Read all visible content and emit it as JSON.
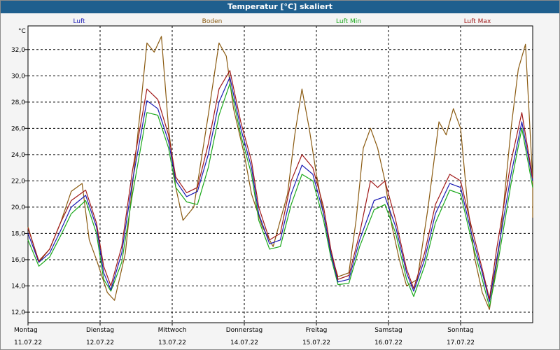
{
  "window": {
    "title": "Temperatur [°C] skaliert"
  },
  "chart_data": {
    "type": "line",
    "title": "Temperatur [°C] skaliert",
    "ylabel": "°C",
    "ylim": [
      11.2,
      33.8
    ],
    "yticks": [
      12.0,
      14.0,
      16.0,
      18.0,
      20.0,
      22.0,
      24.0,
      26.0,
      28.0,
      30.0,
      32.0
    ],
    "ytick_labels": [
      "12,0",
      "14,0",
      "16,0",
      "18,0",
      "20,0",
      "22,0",
      "24,0",
      "26,0",
      "28,0",
      "30,0",
      "32,0"
    ],
    "xlim": [
      0,
      7
    ],
    "x_unit": "days from Montag 11.07.22 00:00",
    "grid": true,
    "legend_position": "top",
    "days": [
      {
        "weekday": "Montag",
        "date": "11.07.22"
      },
      {
        "weekday": "Dienstag",
        "date": "12.07.22"
      },
      {
        "weekday": "Mittwoch",
        "date": "13.07.22"
      },
      {
        "weekday": "Donnerstag",
        "date": "14.07.22"
      },
      {
        "weekday": "Freitag",
        "date": "15.07.22"
      },
      {
        "weekday": "Samstag",
        "date": "16.07.22"
      },
      {
        "weekday": "Sonntag",
        "date": "17.07.22"
      }
    ],
    "series": [
      {
        "name": "Luft",
        "color": "#1a1ab4",
        "points": [
          [
            0,
            18.0
          ],
          [
            0.15,
            15.8
          ],
          [
            0.3,
            16.5
          ],
          [
            0.45,
            18.2
          ],
          [
            0.6,
            20.0
          ],
          [
            0.8,
            20.9
          ],
          [
            0.95,
            18.5
          ],
          [
            1.05,
            15.0
          ],
          [
            1.15,
            13.7
          ],
          [
            1.3,
            16.5
          ],
          [
            1.45,
            22.0
          ],
          [
            1.65,
            28.1
          ],
          [
            1.8,
            27.5
          ],
          [
            1.95,
            25.0
          ],
          [
            2.05,
            22.0
          ],
          [
            2.2,
            20.8
          ],
          [
            2.35,
            21.2
          ],
          [
            2.5,
            24.0
          ],
          [
            2.65,
            28.0
          ],
          [
            2.8,
            29.9
          ],
          [
            2.95,
            26.0
          ],
          [
            3.1,
            23.0
          ],
          [
            3.2,
            19.5
          ],
          [
            3.35,
            17.2
          ],
          [
            3.5,
            17.5
          ],
          [
            3.65,
            21.0
          ],
          [
            3.8,
            23.2
          ],
          [
            3.95,
            22.5
          ],
          [
            4.1,
            19.5
          ],
          [
            4.2,
            16.5
          ],
          [
            4.3,
            14.3
          ],
          [
            4.45,
            14.5
          ],
          [
            4.6,
            17.5
          ],
          [
            4.8,
            20.5
          ],
          [
            4.95,
            20.8
          ],
          [
            5.1,
            18.5
          ],
          [
            5.25,
            15.0
          ],
          [
            5.35,
            13.6
          ],
          [
            5.5,
            16.0
          ],
          [
            5.65,
            19.5
          ],
          [
            5.85,
            21.8
          ],
          [
            6.0,
            21.5
          ],
          [
            6.15,
            18.0
          ],
          [
            6.3,
            15.0
          ],
          [
            6.4,
            12.8
          ],
          [
            6.5,
            16.0
          ],
          [
            6.7,
            22.5
          ],
          [
            6.85,
            26.5
          ],
          [
            7.0,
            22.0
          ]
        ]
      },
      {
        "name": "Boden",
        "color": "#8a5a10",
        "points": [
          [
            0,
            18.5
          ],
          [
            0.15,
            15.8
          ],
          [
            0.3,
            16.8
          ],
          [
            0.45,
            18.8
          ],
          [
            0.6,
            21.2
          ],
          [
            0.75,
            21.8
          ],
          [
            0.85,
            17.5
          ],
          [
            0.95,
            16.0
          ],
          [
            1.1,
            13.5
          ],
          [
            1.2,
            12.9
          ],
          [
            1.35,
            16.5
          ],
          [
            1.55,
            27.0
          ],
          [
            1.65,
            32.5
          ],
          [
            1.75,
            31.8
          ],
          [
            1.85,
            33.0
          ],
          [
            1.95,
            26.0
          ],
          [
            2.05,
            21.5
          ],
          [
            2.15,
            19.0
          ],
          [
            2.3,
            20.0
          ],
          [
            2.5,
            27.0
          ],
          [
            2.65,
            32.5
          ],
          [
            2.75,
            31.5
          ],
          [
            2.85,
            27.5
          ],
          [
            3.0,
            24.0
          ],
          [
            3.1,
            21.0
          ],
          [
            3.25,
            18.5
          ],
          [
            3.4,
            17.0
          ],
          [
            3.6,
            21.0
          ],
          [
            3.7,
            25.5
          ],
          [
            3.8,
            29.0
          ],
          [
            3.9,
            26.0
          ],
          [
            4.0,
            22.5
          ],
          [
            4.1,
            19.5
          ],
          [
            4.2,
            16.5
          ],
          [
            4.3,
            14.7
          ],
          [
            4.45,
            15.0
          ],
          [
            4.55,
            19.0
          ],
          [
            4.65,
            24.5
          ],
          [
            4.75,
            26.0
          ],
          [
            4.85,
            24.5
          ],
          [
            4.95,
            22.0
          ],
          [
            5.05,
            18.5
          ],
          [
            5.15,
            16.0
          ],
          [
            5.25,
            14.0
          ],
          [
            5.4,
            14.5
          ],
          [
            5.55,
            20.0
          ],
          [
            5.7,
            26.5
          ],
          [
            5.8,
            25.5
          ],
          [
            5.9,
            27.5
          ],
          [
            6.0,
            26.0
          ],
          [
            6.1,
            20.0
          ],
          [
            6.2,
            16.0
          ],
          [
            6.3,
            13.5
          ],
          [
            6.4,
            12.2
          ],
          [
            6.55,
            17.5
          ],
          [
            6.7,
            26.0
          ],
          [
            6.8,
            30.5
          ],
          [
            6.9,
            32.4
          ],
          [
            7.0,
            22.0
          ],
          [
            7.0,
            19.2
          ]
        ]
      },
      {
        "name": "Luft Min",
        "color": "#1aa81a",
        "points": [
          [
            0,
            17.5
          ],
          [
            0.15,
            15.5
          ],
          [
            0.3,
            16.2
          ],
          [
            0.45,
            17.8
          ],
          [
            0.6,
            19.5
          ],
          [
            0.8,
            20.5
          ],
          [
            0.95,
            18.0
          ],
          [
            1.05,
            14.5
          ],
          [
            1.15,
            13.6
          ],
          [
            1.3,
            15.8
          ],
          [
            1.45,
            21.0
          ],
          [
            1.65,
            27.2
          ],
          [
            1.8,
            27.0
          ],
          [
            1.95,
            24.5
          ],
          [
            2.05,
            21.5
          ],
          [
            2.2,
            20.4
          ],
          [
            2.35,
            20.2
          ],
          [
            2.5,
            23.0
          ],
          [
            2.65,
            27.0
          ],
          [
            2.8,
            29.4
          ],
          [
            2.95,
            25.5
          ],
          [
            3.1,
            22.5
          ],
          [
            3.2,
            19.0
          ],
          [
            3.35,
            16.8
          ],
          [
            3.5,
            17.0
          ],
          [
            3.65,
            20.2
          ],
          [
            3.8,
            22.5
          ],
          [
            3.95,
            22.0
          ],
          [
            4.1,
            19.0
          ],
          [
            4.2,
            16.2
          ],
          [
            4.3,
            14.1
          ],
          [
            4.45,
            14.2
          ],
          [
            4.6,
            17.0
          ],
          [
            4.8,
            19.8
          ],
          [
            4.95,
            20.2
          ],
          [
            5.1,
            18.0
          ],
          [
            5.25,
            14.5
          ],
          [
            5.35,
            13.2
          ],
          [
            5.5,
            15.5
          ],
          [
            5.65,
            18.8
          ],
          [
            5.85,
            21.3
          ],
          [
            6.0,
            21.0
          ],
          [
            6.15,
            17.5
          ],
          [
            6.3,
            14.5
          ],
          [
            6.4,
            12.4
          ],
          [
            6.5,
            15.2
          ],
          [
            6.7,
            21.8
          ],
          [
            6.85,
            26.0
          ],
          [
            7.0,
            21.5
          ]
        ]
      },
      {
        "name": "Luft Max",
        "color": "#a01818",
        "points": [
          [
            0,
            18.4
          ],
          [
            0.15,
            15.9
          ],
          [
            0.3,
            16.8
          ],
          [
            0.45,
            18.8
          ],
          [
            0.6,
            20.5
          ],
          [
            0.8,
            21.3
          ],
          [
            0.95,
            18.8
          ],
          [
            1.05,
            15.5
          ],
          [
            1.15,
            14.0
          ],
          [
            1.3,
            17.0
          ],
          [
            1.45,
            22.8
          ],
          [
            1.65,
            29.0
          ],
          [
            1.8,
            28.2
          ],
          [
            1.95,
            25.5
          ],
          [
            2.05,
            22.3
          ],
          [
            2.2,
            21.1
          ],
          [
            2.35,
            21.5
          ],
          [
            2.5,
            24.8
          ],
          [
            2.65,
            29.0
          ],
          [
            2.8,
            30.4
          ],
          [
            2.95,
            26.5
          ],
          [
            3.1,
            23.5
          ],
          [
            3.2,
            20.0
          ],
          [
            3.35,
            17.5
          ],
          [
            3.5,
            18.0
          ],
          [
            3.65,
            22.0
          ],
          [
            3.8,
            24.0
          ],
          [
            3.95,
            23.0
          ],
          [
            4.1,
            20.0
          ],
          [
            4.2,
            16.8
          ],
          [
            4.3,
            14.5
          ],
          [
            4.45,
            14.8
          ],
          [
            4.6,
            18.0
          ],
          [
            4.75,
            22.0
          ],
          [
            4.85,
            21.5
          ],
          [
            4.95,
            22.0
          ],
          [
            5.1,
            19.0
          ],
          [
            5.25,
            15.3
          ],
          [
            5.35,
            13.8
          ],
          [
            5.5,
            16.5
          ],
          [
            5.65,
            20.2
          ],
          [
            5.85,
            22.5
          ],
          [
            6.0,
            22.0
          ],
          [
            6.15,
            18.5
          ],
          [
            6.3,
            15.3
          ],
          [
            6.4,
            13.0
          ],
          [
            6.5,
            16.8
          ],
          [
            6.7,
            23.5
          ],
          [
            6.85,
            27.2
          ],
          [
            7.0,
            22.2
          ]
        ]
      }
    ]
  }
}
